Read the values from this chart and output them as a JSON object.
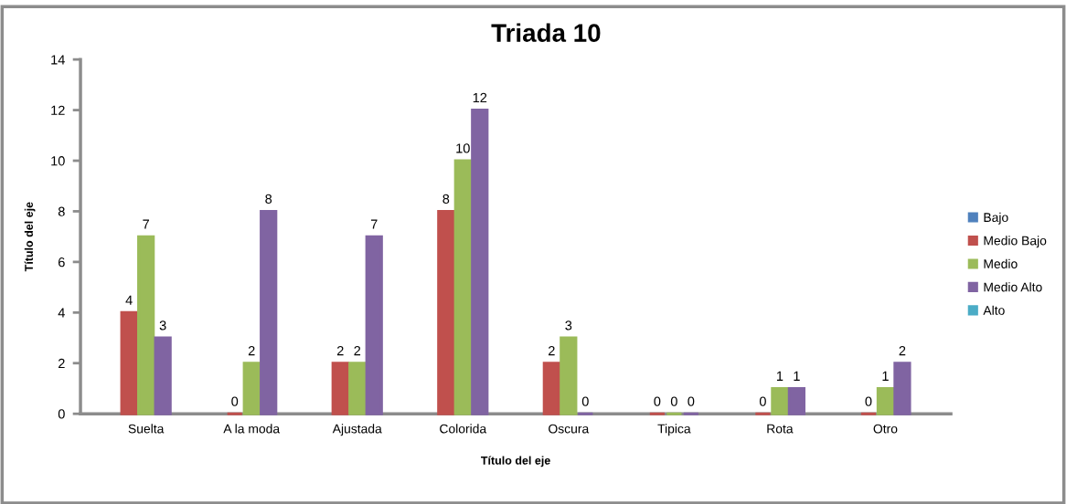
{
  "chart_data": {
    "type": "bar",
    "title": "Triada 10",
    "xlabel": "Título del eje",
    "ylabel": "Título del eje",
    "categories": [
      "Suelta",
      "A la moda",
      "Ajustada",
      "Colorida",
      "Oscura",
      "Tipica",
      "Rota",
      "Otro"
    ],
    "series": [
      {
        "name": "Bajo",
        "color": "#4f81bd",
        "values": [
          null,
          null,
          null,
          null,
          null,
          null,
          null,
          null
        ]
      },
      {
        "name": "Medio Bajo",
        "color": "#c0504d",
        "values": [
          4,
          0,
          2,
          8,
          2,
          0,
          0,
          0
        ]
      },
      {
        "name": "Medio",
        "color": "#9bbb59",
        "values": [
          7,
          2,
          2,
          10,
          3,
          0,
          1,
          1
        ]
      },
      {
        "name": "Medio Alto",
        "color": "#8064a2",
        "values": [
          3,
          8,
          7,
          12,
          0,
          0,
          1,
          2
        ]
      },
      {
        "name": "Alto",
        "color": "#4bacc6",
        "values": [
          null,
          null,
          null,
          null,
          null,
          null,
          null,
          null
        ]
      }
    ],
    "ylim": [
      0,
      14
    ],
    "yticks": [
      0,
      2,
      4,
      6,
      8,
      10,
      12,
      14
    ],
    "grid": false,
    "legend": "right",
    "data_labels": true
  }
}
